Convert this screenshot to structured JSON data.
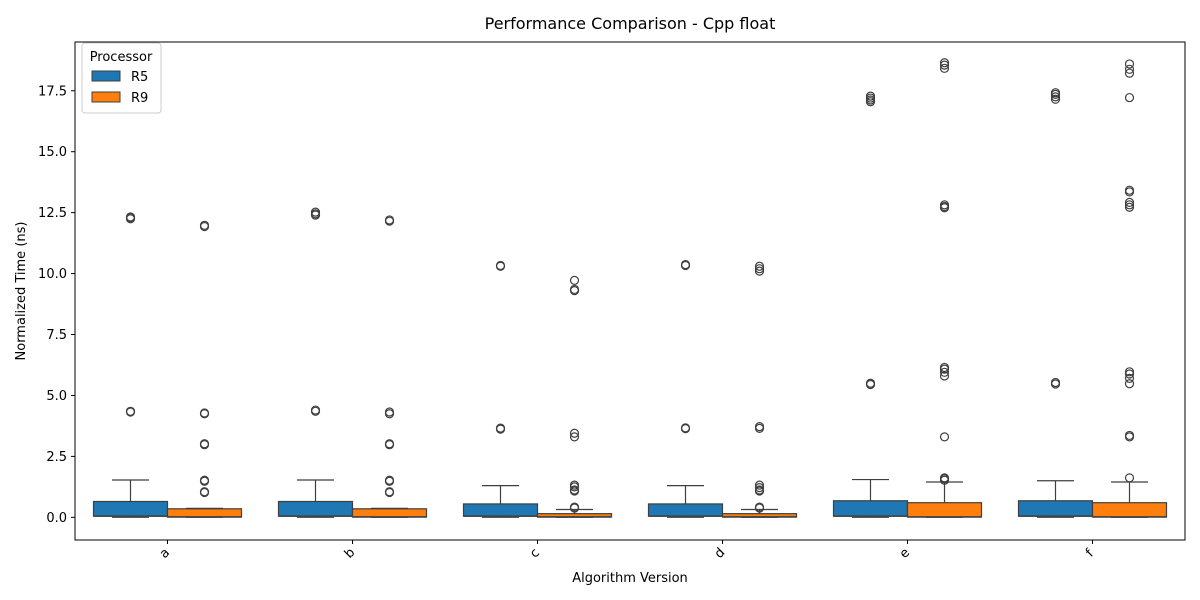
{
  "chart_data": {
    "type": "box",
    "title": "Performance Comparison - Cpp float",
    "xlabel": "Algorithm Version",
    "ylabel": "Normalized Time (ns)",
    "ylim": [
      -0.93,
      19.5
    ],
    "yticks": [
      0.0,
      2.5,
      5.0,
      7.5,
      10.0,
      12.5,
      15.0,
      17.5
    ],
    "ytick_labels": [
      "0.0",
      "2.5",
      "5.0",
      "7.5",
      "10.0",
      "12.5",
      "15.0",
      "17.5"
    ],
    "grid": false,
    "categories": [
      "a",
      "b",
      "c",
      "d",
      "e",
      "f"
    ],
    "legend": {
      "title": "Processor",
      "position": "top-left",
      "entries": [
        "R5",
        "R9"
      ]
    },
    "series": [
      {
        "name": "R5",
        "color": "#1f77b4",
        "boxes": [
          {
            "q1": 0.05,
            "median": 0.05,
            "q3": 0.65,
            "whisker_low": 0.0,
            "whisker_high": 1.53,
            "outliers": [
              4.32,
              4.35,
              12.25,
              12.3,
              12.32
            ]
          },
          {
            "q1": 0.05,
            "median": 0.05,
            "q3": 0.65,
            "whisker_low": 0.0,
            "whisker_high": 1.53,
            "outliers": [
              4.35,
              4.4,
              12.4,
              12.45,
              12.52
            ]
          },
          {
            "q1": 0.05,
            "median": 0.05,
            "q3": 0.55,
            "whisker_low": 0.0,
            "whisker_high": 1.3,
            "outliers": [
              3.62,
              3.66,
              10.3,
              10.33
            ]
          },
          {
            "q1": 0.05,
            "median": 0.05,
            "q3": 0.55,
            "whisker_low": 0.0,
            "whisker_high": 1.3,
            "outliers": [
              3.64,
              3.67,
              10.33,
              10.37
            ]
          },
          {
            "q1": 0.05,
            "median": 0.05,
            "q3": 0.68,
            "whisker_low": 0.0,
            "whisker_high": 1.55,
            "outliers": [
              5.45,
              5.5,
              17.05,
              17.12,
              17.2,
              17.28
            ]
          },
          {
            "q1": 0.05,
            "median": 0.05,
            "q3": 0.68,
            "whisker_low": 0.0,
            "whisker_high": 1.5,
            "outliers": [
              5.47,
              5.53,
              17.15,
              17.25,
              17.35,
              17.42
            ]
          }
        ]
      },
      {
        "name": "R9",
        "color": "#ff7f0e",
        "boxes": [
          {
            "q1": 0.01,
            "median": 0.02,
            "q3": 0.35,
            "whisker_low": 0.0,
            "whisker_high": 0.37,
            "outliers": [
              1.02,
              1.05,
              1.48,
              1.52,
              2.98,
              3.02,
              4.25,
              4.28,
              11.93,
              11.98
            ]
          },
          {
            "q1": 0.01,
            "median": 0.02,
            "q3": 0.35,
            "whisker_low": 0.0,
            "whisker_high": 0.37,
            "outliers": [
              1.02,
              1.05,
              1.48,
              1.52,
              2.98,
              3.02,
              4.25,
              4.32,
              12.15,
              12.2
            ]
          },
          {
            "q1": 0.01,
            "median": 0.02,
            "q3": 0.15,
            "whisker_low": 0.0,
            "whisker_high": 0.32,
            "outliers": [
              0.38,
              0.42,
              1.08,
              1.12,
              1.25,
              1.32,
              3.3,
              3.45,
              9.3,
              9.35,
              9.72
            ]
          },
          {
            "q1": 0.01,
            "median": 0.02,
            "q3": 0.15,
            "whisker_low": 0.0,
            "whisker_high": 0.32,
            "outliers": [
              0.38,
              0.42,
              1.08,
              1.12,
              1.22,
              1.32,
              3.65,
              3.72,
              10.1,
              10.2,
              10.3
            ]
          },
          {
            "q1": 0.01,
            "median": 0.02,
            "q3": 0.6,
            "whisker_low": 0.0,
            "whisker_high": 1.45,
            "outliers": [
              1.52,
              1.58,
              1.62,
              3.3,
              5.8,
              5.95,
              6.08,
              6.15,
              12.7,
              12.75,
              12.82,
              18.42,
              18.55,
              18.65
            ]
          },
          {
            "q1": 0.01,
            "median": 0.02,
            "q3": 0.6,
            "whisker_low": 0.0,
            "whisker_high": 1.45,
            "outliers": [
              1.62,
              3.3,
              3.36,
              5.48,
              5.7,
              5.88,
              5.97,
              12.72,
              12.82,
              12.92,
              13.35,
              13.42,
              17.22,
              18.22,
              18.38,
              18.6
            ]
          }
        ]
      }
    ]
  }
}
